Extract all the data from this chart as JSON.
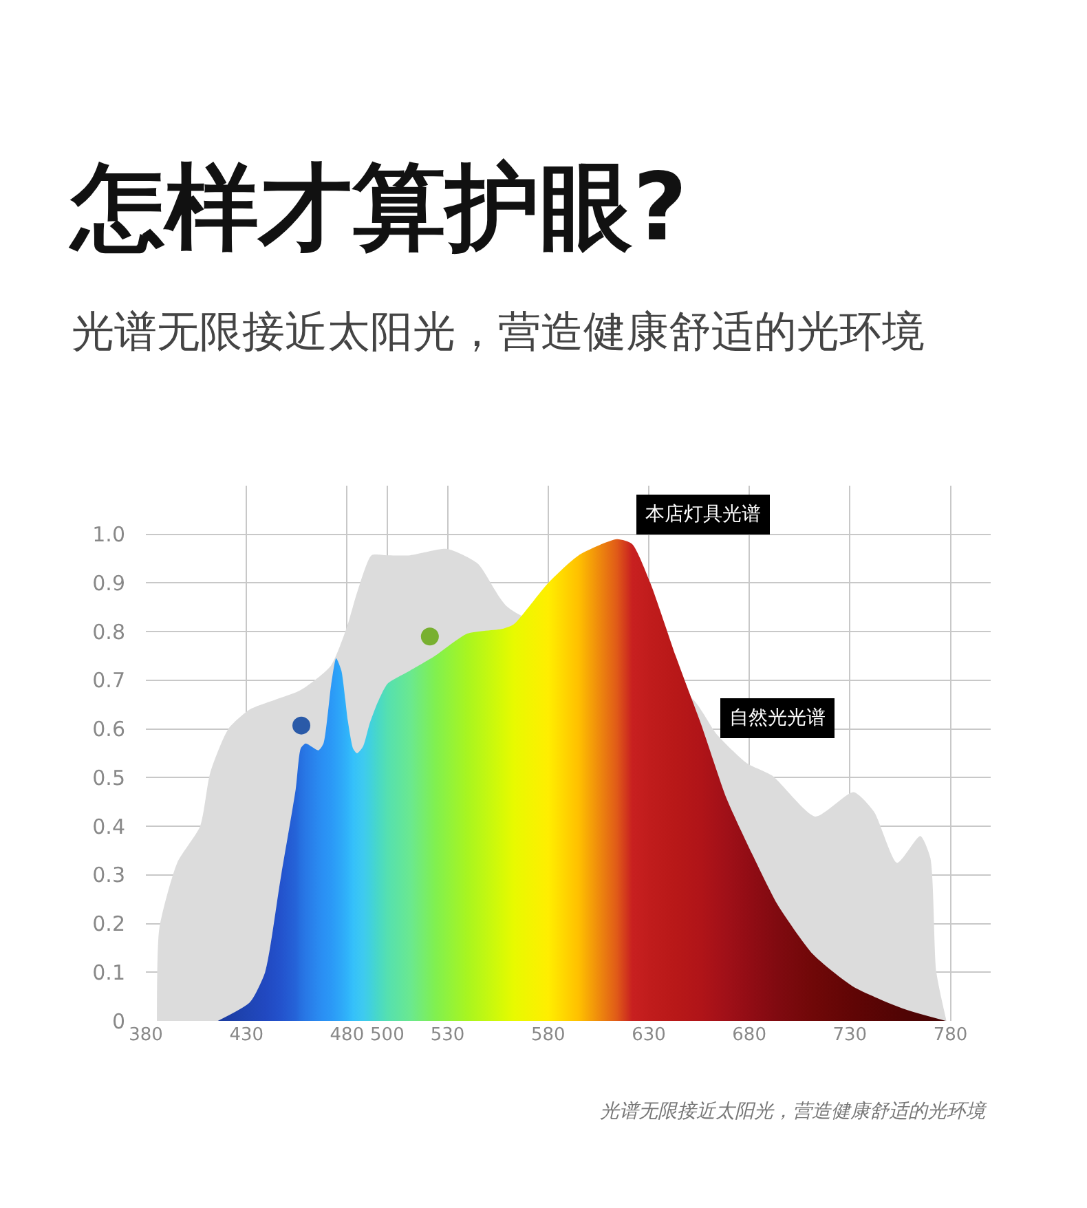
{
  "chart_data": {
    "type": "area",
    "title": "怎样才算护眼?",
    "subtitle": "光谱无限接近太阳光，营造健康舒适的光环境",
    "xlim": [
      380,
      800
    ],
    "xticks": [
      380,
      430,
      480,
      500,
      530,
      580,
      630,
      680,
      730,
      780
    ],
    "ylim": [
      0,
      1.1
    ],
    "yticks": [
      0,
      0.1,
      0.2,
      0.3,
      0.4,
      0.5,
      0.6,
      0.7,
      0.8,
      0.9,
      {
        "value": 1,
        "label": "1.0"
      }
    ],
    "grid": true,
    "series": [
      {
        "color": "#dcdcdc",
        "x": [
          385.5,
          386.7,
          395.6,
          407,
          412,
          421,
          431.7,
          457,
          472,
          480,
          485,
          492.2,
          499.4,
          511.4,
          529.8,
          545,
          560,
          651,
          663.6,
          678.7,
          691.4,
          712.8,
          731.8,
          742,
          753.5,
          765,
          770,
          773,
          778
        ],
        "values": [
          0,
          0.19,
          0.325,
          0.4,
          0.51,
          0.6,
          0.64,
          0.68,
          0.73,
          0.81,
          0.88,
          0.957,
          0.957,
          0.957,
          0.97,
          0.94,
          0.85,
          0.665,
          0.59,
          0.53,
          0.504,
          0.42,
          0.47,
          0.43,
          0.325,
          0.38,
          0.335,
          0.1,
          0
        ]
      },
      {
        "x": [
          415.8,
          431.7,
          439.3,
          446.9,
          454.5,
          457,
          459.5,
          465.8,
          468.3,
          472.1,
          474.6,
          477.2,
          480.4,
          483,
          485,
          488.1,
          491.2,
          495.3,
          500.2,
          511.4,
          523.7,
          539.8,
          557.5,
          562.9,
          580,
          595.2,
          614.2,
          621.8,
          630.8,
          643.4,
          656,
          668.7,
          681.3,
          693.9,
          711.6,
          731.8,
          757.3,
          777.7
        ],
        "values": [
          0,
          0.038,
          0.1,
          0.29,
          0.476,
          0.56,
          0.57,
          0.556,
          0.57,
          0.69,
          0.745,
          0.72,
          0.617,
          0.56,
          0.55,
          0.565,
          0.61,
          0.655,
          0.693,
          0.72,
          0.75,
          0.796,
          0.806,
          0.815,
          0.9,
          0.957,
          0.99,
          0.98,
          0.9,
          0.75,
          0.61,
          0.457,
          0.344,
          0.24,
          0.137,
          0.07,
          0.024,
          0
        ],
        "colors": [
          "#1a3a9e",
          "#1f45b5",
          "#2148c0",
          "#2352cc",
          "#2563d8",
          "#2670e0",
          "#2878e6",
          "#2a8af0",
          "#2a90f4",
          "#2b98f6",
          "#2ca0f8",
          "#2ea8f8",
          "#30b4fa",
          "#35c0fa",
          "#38c4f6",
          "#3ecaf0",
          "#40d0e0",
          "#48d8c8",
          "#55e0b0",
          "#6ae890",
          "#80f050",
          "#a8f520",
          "#d8fa05",
          "#e8fa00",
          "#ffee00",
          "#ffc000",
          "#e05a18",
          "#c82020",
          "#c01c1c",
          "#b81818",
          "#b01418",
          "#a01018",
          "#900c14",
          "#800a10",
          "#700808",
          "#600505",
          "#500404",
          "#480404"
        ]
      },
      {
        "type": "scatter",
        "marker": "circle",
        "color": "#2a5aa8",
        "x": [
          457.3
        ],
        "values": [
          0.607
        ]
      },
      {
        "type": "scatter",
        "marker": "circle",
        "color": "#78b030",
        "x": [
          521.2
        ],
        "values": [
          0.79
        ]
      }
    ],
    "annotations": [
      "本店灯具光谱",
      "自然光光谱",
      "*光谱无限接近太阳光，营造健康舒适的光环境*"
    ]
  }
}
